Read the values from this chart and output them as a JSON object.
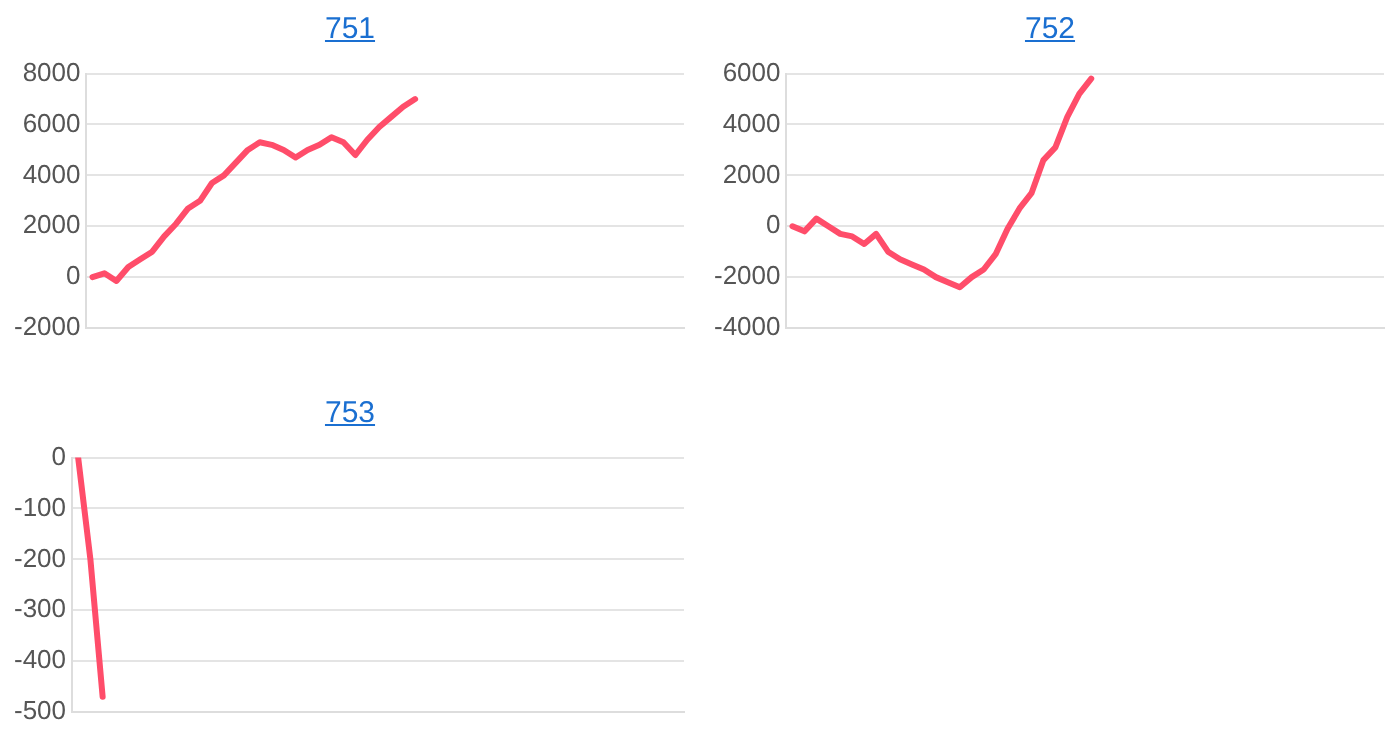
{
  "chart_data": [
    {
      "type": "line",
      "title": "751",
      "color": "#ff4d6a",
      "grid": "y",
      "tick_labels": "y",
      "marker": "none",
      "legend": false,
      "categories": [
        null,
        null,
        null,
        null,
        null,
        null,
        null,
        null,
        null,
        null,
        null,
        null,
        null,
        null,
        null,
        null,
        null,
        null,
        null,
        null,
        null,
        null,
        null,
        null,
        null,
        null,
        null,
        null,
        null,
        null,
        null,
        null,
        null,
        null,
        null,
        null,
        null,
        null,
        null,
        null,
        null,
        null,
        null,
        null,
        null,
        null,
        null,
        null,
        null,
        null
      ],
      "values": [
        0,
        150,
        -150,
        400,
        700,
        1000,
        1600,
        2100,
        2700,
        3000,
        3700,
        4000,
        4500,
        5000,
        5300,
        5200,
        5000,
        4700,
        5000,
        5200,
        5500,
        5300,
        4800,
        5400,
        5900,
        6300,
        6700,
        7000,
        null,
        null,
        null,
        null,
        null,
        null,
        null,
        null,
        null,
        null,
        null,
        null,
        null,
        null,
        null,
        null,
        null,
        null,
        null,
        null,
        null,
        null
      ],
      "ylim": [
        -2000,
        8000
      ],
      "yticks": [
        -2000,
        0,
        2000,
        4000,
        6000,
        8000
      ]
    },
    {
      "type": "line",
      "title": "752",
      "color": "#ff4d6a",
      "grid": "y",
      "tick_labels": "y",
      "marker": "none",
      "legend": false,
      "categories": [
        null,
        null,
        null,
        null,
        null,
        null,
        null,
        null,
        null,
        null,
        null,
        null,
        null,
        null,
        null,
        null,
        null,
        null,
        null,
        null,
        null,
        null,
        null,
        null,
        null,
        null,
        null,
        null,
        null,
        null,
        null,
        null,
        null,
        null,
        null,
        null,
        null,
        null,
        null,
        null,
        null,
        null,
        null,
        null,
        null,
        null,
        null,
        null,
        null,
        null
      ],
      "values": [
        0,
        -200,
        300,
        0,
        -300,
        -400,
        -700,
        -300,
        -1000,
        -1300,
        -1500,
        -1700,
        -2000,
        -2200,
        -2400,
        -2000,
        -1700,
        -1100,
        -100,
        700,
        1300,
        2600,
        3100,
        4300,
        5200,
        5800,
        null,
        null,
        null,
        null,
        null,
        null,
        null,
        null,
        null,
        null,
        null,
        null,
        null,
        null,
        null,
        null,
        null,
        null,
        null,
        null,
        null,
        null,
        null,
        null
      ],
      "ylim": [
        -4000,
        6000
      ],
      "yticks": [
        -4000,
        -2000,
        0,
        2000,
        4000,
        6000
      ]
    },
    {
      "type": "line",
      "title": "753",
      "color": "#ff4d6a",
      "grid": "y",
      "tick_labels": "y",
      "marker": "none",
      "legend": false,
      "categories": [
        null,
        null,
        null,
        null,
        null,
        null,
        null,
        null,
        null,
        null,
        null,
        null,
        null,
        null,
        null,
        null,
        null,
        null,
        null,
        null,
        null,
        null,
        null,
        null,
        null,
        null,
        null,
        null,
        null,
        null,
        null,
        null,
        null,
        null,
        null,
        null,
        null,
        null,
        null,
        null,
        null,
        null,
        null,
        null,
        null,
        null,
        null,
        null,
        null,
        null
      ],
      "values": [
        0,
        -200,
        -470,
        null,
        null,
        null,
        null,
        null,
        null,
        null,
        null,
        null,
        null,
        null,
        null,
        null,
        null,
        null,
        null,
        null,
        null,
        null,
        null,
        null,
        null,
        null,
        null,
        null,
        null,
        null,
        null,
        null,
        null,
        null,
        null,
        null,
        null,
        null,
        null,
        null,
        null,
        null,
        null,
        null,
        null,
        null,
        null,
        null,
        null,
        null
      ],
      "ylim": [
        -500,
        0
      ],
      "yticks": [
        -500,
        -400,
        -300,
        -200,
        -100,
        0
      ]
    }
  ]
}
